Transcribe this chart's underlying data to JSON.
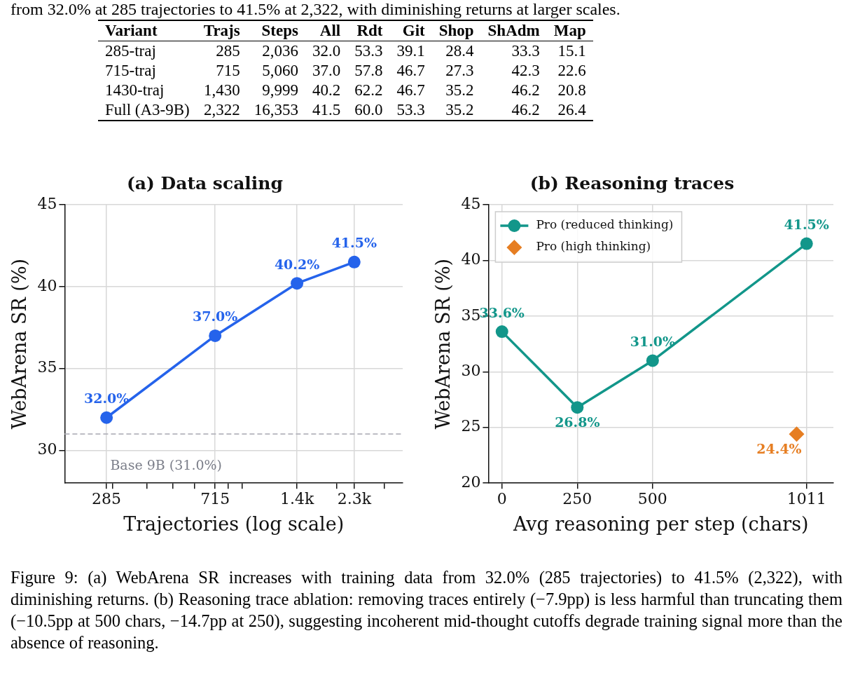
{
  "chart_data": [
    {
      "type": "other",
      "categories": [
        "Variant",
        "Trajs",
        "Steps",
        "All",
        "Rdt",
        "Git",
        "Shop",
        "ShAdm",
        "Map"
      ],
      "cell_labels": [
        [
          "285-traj",
          "285",
          "2,036",
          "32.0",
          "53.3",
          "39.1",
          "28.4",
          "33.3",
          "15.1"
        ],
        [
          "715-traj",
          "715",
          "5,060",
          "37.0",
          "57.8",
          "46.7",
          "27.3",
          "42.3",
          "22.6"
        ],
        [
          "1430-traj",
          "1,430",
          "9,999",
          "40.2",
          "62.2",
          "46.7",
          "35.2",
          "46.2",
          "20.8"
        ],
        [
          "Full (A3-9B)",
          "2,322",
          "16,353",
          "41.5",
          "60.0",
          "53.3",
          "35.2",
          "46.2",
          "26.4"
        ]
      ],
      "annotations": [
        "from 32.0% at 285 trajectories to 41.5% at 2,322, with diminishing returns at larger scales.",
        "Figure 9: (a) WebArena SR increases with training data from 32.0% (285 trajectories) to 41.5% (2,322), with diminishing returns. (b) Reasoning trace ablation: removing traces entirely (−7.9pp) is less harmful than truncating them (−10.5pp at 500 chars, −14.7pp at 250), suggesting incoherent mid-thought cutoffs degrade training signal more than the absence of reasoning."
      ]
    },
    {
      "type": "line",
      "title": "(a) Data scaling",
      "xlabel": "Trajectories (log scale)",
      "ylabel": "WebArena SR (%)",
      "log": "x",
      "x": [
        285,
        715,
        1430,
        2322
      ],
      "series": [
        {
          "color": "#2563eb",
          "values": [
            32.0,
            37.0,
            40.2,
            41.5
          ],
          "value_labels": [
            "32.0%",
            "37.0%",
            "40.2%",
            "41.5%"
          ]
        }
      ],
      "xlim": [
        200,
        3500
      ],
      "xticks": [
        {
          "value": 285,
          "label": "285"
        },
        {
          "value": 300,
          "label": null
        },
        {
          "value": 400,
          "label": null
        },
        {
          "value": 500,
          "label": null
        },
        {
          "value": 600,
          "label": null
        },
        {
          "value": 715,
          "label": "715"
        },
        {
          "value": 800,
          "label": null
        },
        {
          "value": 900,
          "label": null
        },
        {
          "value": 1430,
          "label": "1.4k"
        },
        {
          "value": 2000,
          "label": null
        },
        {
          "value": 2322,
          "label": "2.3k"
        },
        {
          "value": 3000,
          "label": null
        }
      ],
      "ylim": [
        28,
        45
      ],
      "yticks": [
        30,
        35,
        40,
        45
      ],
      "grid": true,
      "marker": "circle",
      "ref_lines": [
        {
          "axis": "y",
          "value": 31.0,
          "label": "Base 9B (31.0%)",
          "color": "#b4b4bc",
          "line_style": "dashed"
        }
      ]
    },
    {
      "type": "line",
      "title": "(b) Reasoning traces",
      "xlabel": "Avg reasoning per step (chars)",
      "ylabel": "WebArena SR (%)",
      "xlim": [
        -45,
        1100
      ],
      "xticks": [
        0,
        250,
        500,
        1011
      ],
      "ylim": [
        20,
        45
      ],
      "yticks": [
        20,
        25,
        30,
        35,
        40,
        45
      ],
      "grid": true,
      "legend": "top left",
      "series": [
        {
          "name": "Pro (reduced thinking)",
          "type": "line",
          "color": "#12968a",
          "marker": "circle",
          "x": [
            0,
            250,
            500,
            1011
          ],
          "values": [
            33.6,
            26.8,
            31.0,
            41.5
          ],
          "value_labels": [
            "33.6%",
            "26.8%",
            "31.0%",
            "41.5%"
          ]
        },
        {
          "name": "Pro (high thinking)",
          "type": "scatter",
          "color": "#e67e22",
          "marker": "diamond",
          "x": [
            978
          ],
          "values": [
            24.4
          ],
          "value_labels": [
            "24.4%"
          ]
        }
      ]
    }
  ]
}
